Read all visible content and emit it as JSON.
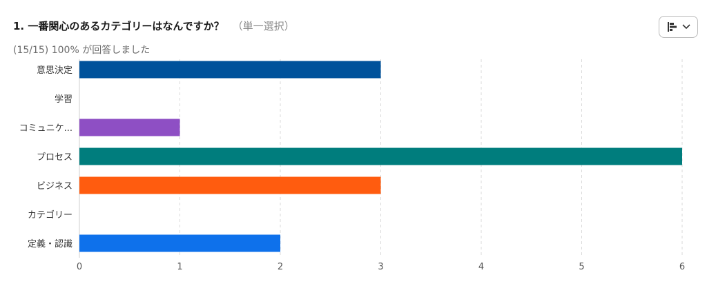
{
  "question": {
    "title": "1. 一番関心のあるカテゴリーはなんですか？",
    "type_note": "（単一選択）",
    "response_summary": "(15/15) 100% が回答しました"
  },
  "toolbar": {
    "chart_type_icon": "bar-chart-icon",
    "dropdown_icon": "chevron-down-icon"
  },
  "chart_data": {
    "type": "bar",
    "orientation": "horizontal",
    "title": "",
    "xlabel": "",
    "ylabel": "",
    "categories": [
      "意思決定",
      "学習",
      "コミュニケ...",
      "プロセス",
      "ビジネス",
      "カテゴリー",
      "定義・認識"
    ],
    "values": [
      3,
      0,
      1,
      6,
      3,
      0,
      2
    ],
    "colors": [
      "#00529b",
      "#cccccc",
      "#8e4fc4",
      "#007d7d",
      "#ff5c0f",
      "#cccccc",
      "#0e71eb"
    ],
    "xlim": [
      0,
      6
    ],
    "xticks": [
      0,
      1,
      2,
      3,
      4,
      5,
      6
    ],
    "grid": true,
    "legend": "none"
  }
}
